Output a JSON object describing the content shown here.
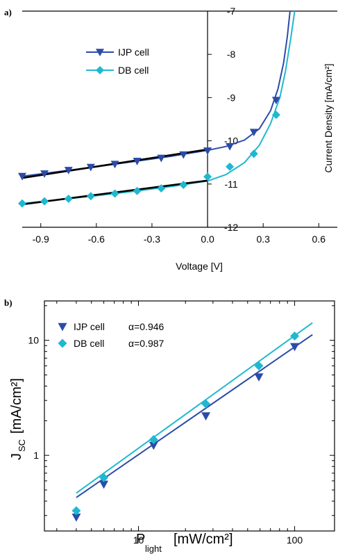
{
  "colors": {
    "ijp": "#2c4ba8",
    "db": "#1fb8d0",
    "fit": "#000000",
    "axis": "#000000"
  },
  "chart_data": [
    {
      "panel": "a)",
      "type": "line",
      "xlabel": "Voltage [V]",
      "ylabel": "Current Density [mA/cm²]",
      "xlim": [
        -1.0,
        0.7
      ],
      "ylim": [
        -12,
        -7
      ],
      "xticks": [
        "-0.9",
        "-0.6",
        "-0.3",
        "0.0",
        "0.3",
        "0.6"
      ],
      "yticks": [
        "-7",
        "-8",
        "-9",
        "-10",
        "-11",
        "-12"
      ],
      "legend": [
        "IJP cell",
        "DB cell"
      ],
      "legend_position": "top-left",
      "series": [
        {
          "name": "IJP cell",
          "marker": "triangle-down",
          "curve": [
            [
              -1.0,
              -10.82
            ],
            [
              -0.8,
              -10.71
            ],
            [
              -0.6,
              -10.6
            ],
            [
              -0.4,
              -10.48
            ],
            [
              -0.2,
              -10.36
            ],
            [
              0.0,
              -10.22
            ],
            [
              0.1,
              -10.13
            ],
            [
              0.2,
              -9.98
            ],
            [
              0.28,
              -9.72
            ],
            [
              0.34,
              -9.3
            ],
            [
              0.38,
              -8.8
            ],
            [
              0.41,
              -8.2
            ],
            [
              0.43,
              -7.6
            ],
            [
              0.445,
              -7.0
            ]
          ],
          "markers": [
            [
              -1.0,
              -10.82
            ],
            [
              -0.88,
              -10.76
            ],
            [
              -0.75,
              -10.68
            ],
            [
              -0.63,
              -10.61
            ],
            [
              -0.5,
              -10.54
            ],
            [
              -0.38,
              -10.47
            ],
            [
              -0.25,
              -10.4
            ],
            [
              -0.13,
              -10.32
            ],
            [
              0.0,
              -10.23
            ],
            [
              0.12,
              -10.13
            ],
            [
              0.25,
              -9.8
            ],
            [
              0.37,
              -9.06
            ]
          ]
        },
        {
          "name": "DB cell",
          "marker": "diamond",
          "curve": [
            [
              -1.0,
              -11.45
            ],
            [
              -0.8,
              -11.36
            ],
            [
              -0.6,
              -11.27
            ],
            [
              -0.4,
              -11.17
            ],
            [
              -0.2,
              -11.06
            ],
            [
              0.0,
              -10.93
            ],
            [
              0.1,
              -10.78
            ],
            [
              0.2,
              -10.5
            ],
            [
              0.28,
              -10.1
            ],
            [
              0.34,
              -9.6
            ],
            [
              0.39,
              -9.0
            ],
            [
              0.42,
              -8.4
            ],
            [
              0.45,
              -7.6
            ],
            [
              0.47,
              -7.0
            ]
          ],
          "markers": [
            [
              -1.0,
              -11.45
            ],
            [
              -0.88,
              -11.4
            ],
            [
              -0.75,
              -11.34
            ],
            [
              -0.63,
              -11.28
            ],
            [
              -0.5,
              -11.22
            ],
            [
              -0.38,
              -11.16
            ],
            [
              -0.25,
              -11.1
            ],
            [
              -0.13,
              -11.02
            ],
            [
              0.0,
              -10.83
            ],
            [
              0.12,
              -10.6
            ],
            [
              0.25,
              -10.3
            ],
            [
              0.37,
              -9.4
            ]
          ]
        }
      ],
      "fits": [
        {
          "of": "IJP cell",
          "points": [
            [
              -1.0,
              -10.86
            ],
            [
              0.0,
              -10.2
            ]
          ]
        },
        {
          "of": "DB cell",
          "points": [
            [
              -1.0,
              -11.47
            ],
            [
              0.0,
              -10.92
            ]
          ]
        }
      ]
    },
    {
      "panel": "b)",
      "type": "scatter",
      "xscale": "log",
      "yscale": "log",
      "xlabel": "P",
      "xlabel_sub": "light",
      "xlabel_unit": "[mW/cm²]",
      "ylabel": "J",
      "ylabel_sub": "SC",
      "ylabel_unit": "[mA/cm²]",
      "xlim": [
        2.5,
        180
      ],
      "ylim": [
        0.22,
        22
      ],
      "xticks": [
        "10",
        "100"
      ],
      "yticks": [
        "1",
        "10"
      ],
      "legend": [
        "IJP cell",
        "DB cell"
      ],
      "legend_alpha": [
        "α=0.946",
        "α=0.987"
      ],
      "legend_position": "top-left",
      "series": [
        {
          "name": "IJP cell",
          "marker": "triangle-down",
          "points": [
            [
              4,
              0.29
            ],
            [
              6,
              0.56
            ],
            [
              12.5,
              1.22
            ],
            [
              27,
              2.2
            ],
            [
              59,
              4.8
            ],
            [
              100,
              8.8
            ]
          ],
          "fit": [
            [
              4,
              0.43
            ],
            [
              130,
              11.2
            ]
          ]
        },
        {
          "name": "DB cell",
          "marker": "diamond",
          "points": [
            [
              4,
              0.33
            ],
            [
              6,
              0.64
            ],
            [
              12.5,
              1.37
            ],
            [
              27,
              2.8
            ],
            [
              59,
              6.0
            ],
            [
              100,
              10.9
            ]
          ],
          "fit": [
            [
              4,
              0.47
            ],
            [
              130,
              14.2
            ]
          ]
        }
      ]
    }
  ]
}
